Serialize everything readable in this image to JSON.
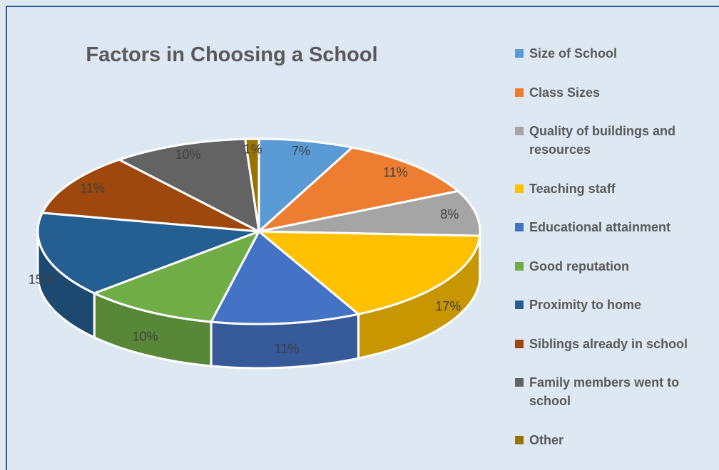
{
  "chart_data": {
    "type": "pie",
    "title": "Factors in Choosing a School",
    "categories": [
      "Size of School",
      "Class Sizes",
      "Quality of buildings and resources",
      "Teaching staff",
      "Educational attainment",
      "Good reputation",
      "Proximity to home",
      "Siblings already in school",
      "Family members went to school",
      "Other"
    ],
    "values": [
      7,
      11,
      8,
      17,
      11,
      10,
      15,
      11,
      10,
      1
    ],
    "value_labels": [
      "7%",
      "11%",
      "8%",
      "17%",
      "11%",
      "10%",
      "15%",
      "11%",
      "10%",
      "1%"
    ],
    "colors": [
      "#5b9bd5",
      "#ed7d31",
      "#a5a5a5",
      "#ffc000",
      "#4472c4",
      "#70ad47",
      "#255e91",
      "#9e480e",
      "#636363",
      "#997300"
    ],
    "legend": "right"
  }
}
